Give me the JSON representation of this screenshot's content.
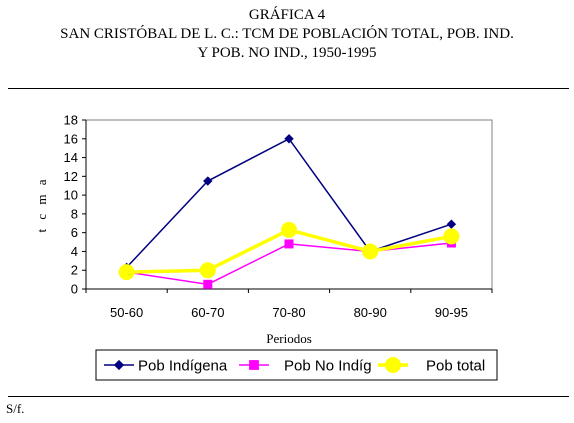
{
  "header": {
    "title_line1": "GRÁFICA 4",
    "title_line2": "SAN CRISTÓBAL DE L. C.: TCM DE POBLACIÓN TOTAL, POB. IND.",
    "title_line3": "Y POB. NO IND., 1950-1995"
  },
  "footer": {
    "source": "S/f."
  },
  "chart_data": {
    "type": "line",
    "categories": [
      "50-60",
      "60-70",
      "70-80",
      "80-90",
      "90-95"
    ],
    "series": [
      {
        "name": "Pob Indígena",
        "values": [
          2.3,
          11.5,
          16.0,
          4.0,
          6.9
        ],
        "color": "#000080",
        "marker": "diamond"
      },
      {
        "name": "Pob No Indíg",
        "values": [
          1.8,
          0.5,
          4.8,
          4.0,
          4.9
        ],
        "color": "#ff00ff",
        "marker": "square"
      },
      {
        "name": "Pob total",
        "values": [
          1.8,
          2.0,
          6.3,
          4.0,
          5.6
        ],
        "color": "#ffff00",
        "marker": "circle"
      }
    ],
    "xlabel": "Periodos",
    "ylabel": "t c m a",
    "ylim": [
      0,
      18
    ],
    "yticks": [
      0,
      2,
      4,
      6,
      8,
      10,
      12,
      14,
      16,
      18
    ],
    "grid": false,
    "legend_position": "bottom"
  }
}
